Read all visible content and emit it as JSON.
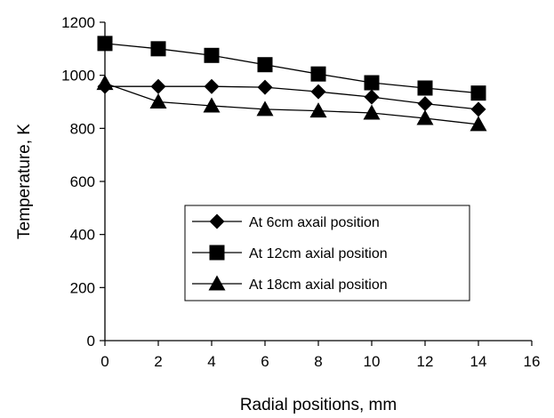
{
  "chart_data": {
    "type": "line",
    "title": "",
    "xlabel": "Radial positions, mm",
    "ylabel": "Temperature, K",
    "xlim": [
      0,
      16
    ],
    "ylim": [
      0,
      1200
    ],
    "xticks": [
      "0",
      "2",
      "4",
      "6",
      "8",
      "10",
      "12",
      "14",
      "16"
    ],
    "yticks": [
      "0",
      "200",
      "400",
      "600",
      "800",
      "1000",
      "1200"
    ],
    "grid": false,
    "legend_position": "center-right",
    "line_color": "#000000",
    "series": [
      {
        "name": "At 6cm axail position",
        "marker": "diamond",
        "x": [
          0,
          2,
          4,
          6,
          8,
          10,
          12,
          14
        ],
        "y": [
          958,
          958,
          958,
          955,
          938,
          918,
          893,
          872
        ]
      },
      {
        "name": "At 12cm axial position",
        "marker": "square",
        "x": [
          0,
          2,
          4,
          6,
          8,
          10,
          12,
          14
        ],
        "y": [
          1120,
          1100,
          1075,
          1040,
          1005,
          972,
          952,
          933
        ]
      },
      {
        "name": "At 18cm axial position",
        "marker": "triangle",
        "x": [
          0,
          2,
          4,
          6,
          8,
          10,
          12,
          14
        ],
        "y": [
          970,
          900,
          885,
          872,
          866,
          858,
          838,
          815
        ]
      }
    ]
  }
}
